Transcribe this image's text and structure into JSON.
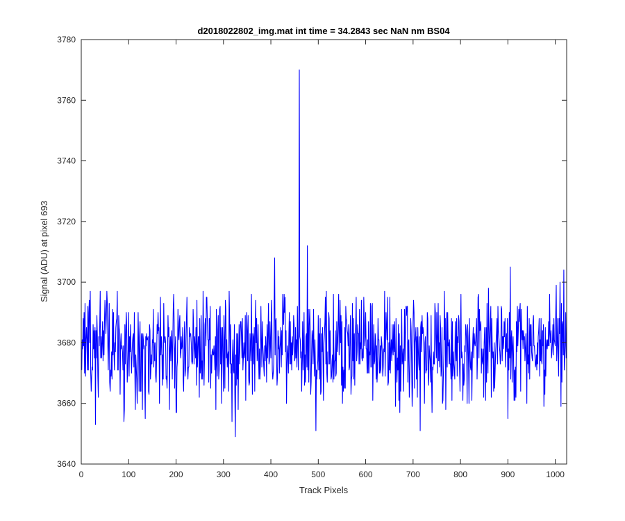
{
  "chart_data": {
    "type": "line",
    "title": "d2018022802_img.mat int time = 34.2843 sec  NaN nm BS04",
    "xlabel": "Track Pixels",
    "ylabel": "Signal (ADU) at pixel 693",
    "xlim": [
      0,
      1024
    ],
    "ylim": [
      3640,
      3780
    ],
    "x_ticks": [
      0,
      100,
      200,
      300,
      400,
      500,
      600,
      700,
      800,
      900,
      1000
    ],
    "y_ticks": [
      3640,
      3660,
      3680,
      3700,
      3720,
      3740,
      3760,
      3780
    ],
    "grid": false,
    "series": [
      {
        "color": "#0000ff",
        "x_start": 1,
        "x_step": 1,
        "baseline": 3678,
        "values_note": "per-pixel noise around baseline; notable extremes listed below",
        "peaks": [
          {
            "x": 460,
            "y": 3770
          },
          {
            "x": 477,
            "y": 3712
          },
          {
            "x": 325,
            "y": 3709
          },
          {
            "x": 408,
            "y": 3708
          },
          {
            "x": 905,
            "y": 3705
          },
          {
            "x": 1018,
            "y": 3704
          },
          {
            "x": 1010,
            "y": 3700
          },
          {
            "x": 325,
            "y": 3649
          },
          {
            "x": 495,
            "y": 3651
          },
          {
            "x": 715,
            "y": 3651
          },
          {
            "x": 30,
            "y": 3653
          },
          {
            "x": 318,
            "y": 3654
          },
          {
            "x": 90,
            "y": 3654
          },
          {
            "x": 900,
            "y": 3655
          },
          {
            "x": 135,
            "y": 3655
          },
          {
            "x": 1012,
            "y": 3659
          }
        ]
      }
    ]
  }
}
